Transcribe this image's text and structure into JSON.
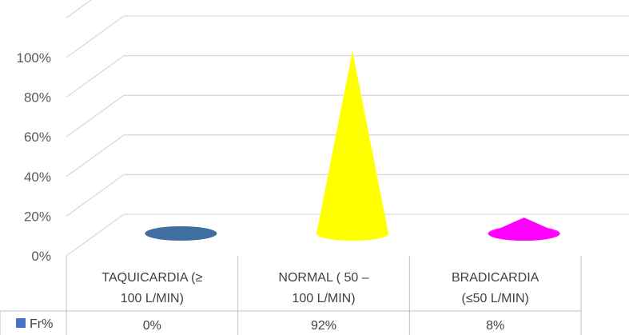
{
  "chart_data": {
    "type": "bar",
    "shape": "cone",
    "view": "3d",
    "categories": [
      [
        "TAQUICARDIA (≥",
        "100 L/MIN)"
      ],
      [
        "NORMAL ( 50 –",
        "100 L/MIN)"
      ],
      [
        "BRADICARDIA",
        "(≤50 L/MIN)"
      ]
    ],
    "series": [
      {
        "name": "Fr%",
        "values": [
          0,
          92,
          8
        ],
        "labels": [
          "0%",
          "92%",
          "8%"
        ],
        "color": "#4472c4"
      }
    ],
    "point_colors": [
      "#3f6f9f",
      "#ffff00",
      "#ff00ff"
    ],
    "yticks": [
      "0%",
      "20%",
      "40%",
      "60%",
      "80%",
      "100%"
    ],
    "ylim": [
      0,
      100
    ],
    "grid": true,
    "legend": "data-table-left"
  }
}
